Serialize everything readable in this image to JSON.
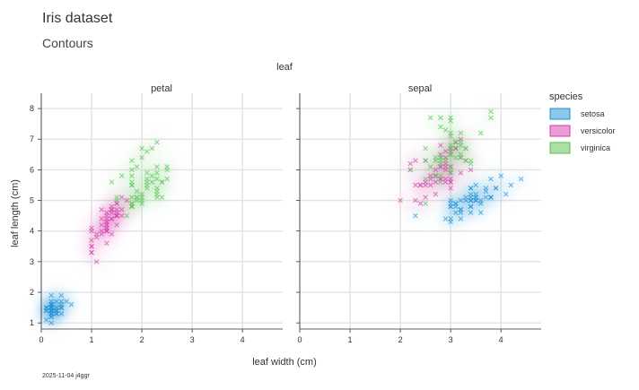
{
  "chart_data": {
    "type": "scatter",
    "title": "Iris dataset",
    "subtitle": "Contours",
    "facet_title": "leaf",
    "panels": [
      "petal",
      "sepal"
    ],
    "xlabel": "leaf width (cm)",
    "ylabel": "leaf length (cm)",
    "xlim": [
      0,
      4.8
    ],
    "ylim": [
      0.8,
      8.5
    ],
    "xticks": [
      0,
      1,
      2,
      3,
      4
    ],
    "yticks": [
      1,
      2,
      3,
      4,
      5,
      6,
      7,
      8
    ],
    "grid": true,
    "legend": {
      "title": "species",
      "placement": "right",
      "entries": [
        {
          "label": "setosa",
          "color": "#1b8fd6"
        },
        {
          "label": "versicolor",
          "color": "#d63dab"
        },
        {
          "label": "virginica",
          "color": "#55c24e"
        }
      ]
    },
    "caption": "2025-11-04 j4ggr",
    "series": [
      {
        "panel": "petal",
        "species": "setosa",
        "points": [
          [
            0.2,
            1.4
          ],
          [
            0.2,
            1.4
          ],
          [
            0.2,
            1.3
          ],
          [
            0.2,
            1.5
          ],
          [
            0.2,
            1.4
          ],
          [
            0.4,
            1.7
          ],
          [
            0.3,
            1.4
          ],
          [
            0.2,
            1.5
          ],
          [
            0.2,
            1.4
          ],
          [
            0.1,
            1.5
          ],
          [
            0.2,
            1.5
          ],
          [
            0.2,
            1.6
          ],
          [
            0.1,
            1.4
          ],
          [
            0.1,
            1.1
          ],
          [
            0.2,
            1.2
          ],
          [
            0.4,
            1.5
          ],
          [
            0.4,
            1.3
          ],
          [
            0.3,
            1.4
          ],
          [
            0.3,
            1.7
          ],
          [
            0.3,
            1.5
          ],
          [
            0.2,
            1.7
          ],
          [
            0.4,
            1.5
          ],
          [
            0.2,
            1.0
          ],
          [
            0.5,
            1.7
          ],
          [
            0.2,
            1.9
          ],
          [
            0.2,
            1.6
          ],
          [
            0.4,
            1.6
          ],
          [
            0.2,
            1.5
          ],
          [
            0.2,
            1.4
          ],
          [
            0.2,
            1.6
          ],
          [
            0.2,
            1.6
          ],
          [
            0.4,
            1.5
          ],
          [
            0.1,
            1.5
          ],
          [
            0.2,
            1.4
          ],
          [
            0.2,
            1.5
          ],
          [
            0.2,
            1.2
          ],
          [
            0.2,
            1.3
          ],
          [
            0.1,
            1.4
          ],
          [
            0.2,
            1.3
          ],
          [
            0.2,
            1.5
          ],
          [
            0.3,
            1.3
          ],
          [
            0.3,
            1.3
          ],
          [
            0.2,
            1.3
          ],
          [
            0.6,
            1.6
          ],
          [
            0.4,
            1.9
          ],
          [
            0.3,
            1.4
          ],
          [
            0.2,
            1.6
          ],
          [
            0.2,
            1.4
          ],
          [
            0.2,
            1.5
          ],
          [
            0.2,
            1.4
          ]
        ]
      },
      {
        "panel": "petal",
        "species": "versicolor",
        "points": [
          [
            1.4,
            4.7
          ],
          [
            1.5,
            4.5
          ],
          [
            1.5,
            4.9
          ],
          [
            1.3,
            4.0
          ],
          [
            1.5,
            4.6
          ],
          [
            1.3,
            4.5
          ],
          [
            1.6,
            4.7
          ],
          [
            1.0,
            3.3
          ],
          [
            1.3,
            4.6
          ],
          [
            1.4,
            3.9
          ],
          [
            1.0,
            3.5
          ],
          [
            1.5,
            4.2
          ],
          [
            1.0,
            4.0
          ],
          [
            1.4,
            4.7
          ],
          [
            1.3,
            3.6
          ],
          [
            1.4,
            4.4
          ],
          [
            1.5,
            4.5
          ],
          [
            1.0,
            4.1
          ],
          [
            1.5,
            4.5
          ],
          [
            1.1,
            3.9
          ],
          [
            1.8,
            4.8
          ],
          [
            1.3,
            4.0
          ],
          [
            1.5,
            4.9
          ],
          [
            1.2,
            4.7
          ],
          [
            1.3,
            4.3
          ],
          [
            1.4,
            4.4
          ],
          [
            1.4,
            4.8
          ],
          [
            1.7,
            5.0
          ],
          [
            1.5,
            4.5
          ],
          [
            1.0,
            3.5
          ],
          [
            1.1,
            3.8
          ],
          [
            1.0,
            3.7
          ],
          [
            1.2,
            3.9
          ],
          [
            1.6,
            5.1
          ],
          [
            1.5,
            4.5
          ],
          [
            1.6,
            4.5
          ],
          [
            1.5,
            4.7
          ],
          [
            1.3,
            4.4
          ],
          [
            1.3,
            4.1
          ],
          [
            1.3,
            4.0
          ],
          [
            1.2,
            4.4
          ],
          [
            1.4,
            4.6
          ],
          [
            1.2,
            4.0
          ],
          [
            1.0,
            3.3
          ],
          [
            1.3,
            4.2
          ],
          [
            1.2,
            4.2
          ],
          [
            1.3,
            4.2
          ],
          [
            1.3,
            4.3
          ],
          [
            1.1,
            3.0
          ],
          [
            1.3,
            4.1
          ]
        ]
      },
      {
        "panel": "petal",
        "species": "virginica",
        "points": [
          [
            2.5,
            6.0
          ],
          [
            1.9,
            5.1
          ],
          [
            2.1,
            5.9
          ],
          [
            1.8,
            5.6
          ],
          [
            2.2,
            5.8
          ],
          [
            2.1,
            6.6
          ],
          [
            1.7,
            4.5
          ],
          [
            1.8,
            6.3
          ],
          [
            1.8,
            5.8
          ],
          [
            2.5,
            6.1
          ],
          [
            2.0,
            5.1
          ],
          [
            1.9,
            5.3
          ],
          [
            2.1,
            5.5
          ],
          [
            2.0,
            5.0
          ],
          [
            2.4,
            5.1
          ],
          [
            2.3,
            5.3
          ],
          [
            1.8,
            5.5
          ],
          [
            2.2,
            6.7
          ],
          [
            2.3,
            6.9
          ],
          [
            1.5,
            5.0
          ],
          [
            2.3,
            5.7
          ],
          [
            2.0,
            4.9
          ],
          [
            2.0,
            6.7
          ],
          [
            1.8,
            4.9
          ],
          [
            2.1,
            5.7
          ],
          [
            1.8,
            6.0
          ],
          [
            1.8,
            4.8
          ],
          [
            1.8,
            4.9
          ],
          [
            2.1,
            5.6
          ],
          [
            1.6,
            5.8
          ],
          [
            1.9,
            6.1
          ],
          [
            2.0,
            6.4
          ],
          [
            2.2,
            5.6
          ],
          [
            1.5,
            5.1
          ],
          [
            1.4,
            5.6
          ],
          [
            2.3,
            6.1
          ],
          [
            2.4,
            5.6
          ],
          [
            1.8,
            5.5
          ],
          [
            1.8,
            4.8
          ],
          [
            2.1,
            5.4
          ],
          [
            2.4,
            5.6
          ],
          [
            2.3,
            5.1
          ],
          [
            1.9,
            5.1
          ],
          [
            2.3,
            5.9
          ],
          [
            2.5,
            5.7
          ],
          [
            2.3,
            5.2
          ],
          [
            1.9,
            5.0
          ],
          [
            2.0,
            5.2
          ],
          [
            2.3,
            5.4
          ],
          [
            1.8,
            5.1
          ]
        ]
      },
      {
        "panel": "sepal",
        "species": "setosa",
        "points": [
          [
            3.5,
            5.1
          ],
          [
            3.0,
            4.9
          ],
          [
            3.2,
            4.7
          ],
          [
            3.1,
            4.6
          ],
          [
            3.6,
            5.0
          ],
          [
            3.9,
            5.4
          ],
          [
            3.4,
            4.6
          ],
          [
            3.4,
            5.0
          ],
          [
            2.9,
            4.4
          ],
          [
            3.1,
            4.9
          ],
          [
            3.7,
            5.4
          ],
          [
            3.4,
            4.8
          ],
          [
            3.0,
            4.8
          ],
          [
            3.0,
            4.3
          ],
          [
            4.0,
            5.8
          ],
          [
            4.4,
            5.7
          ],
          [
            3.9,
            5.4
          ],
          [
            3.5,
            5.1
          ],
          [
            3.8,
            5.7
          ],
          [
            3.8,
            5.1
          ],
          [
            3.4,
            5.4
          ],
          [
            3.7,
            5.1
          ],
          [
            3.6,
            4.6
          ],
          [
            3.3,
            5.1
          ],
          [
            3.4,
            4.8
          ],
          [
            3.0,
            5.0
          ],
          [
            3.4,
            5.0
          ],
          [
            3.5,
            5.2
          ],
          [
            3.4,
            5.2
          ],
          [
            3.2,
            4.7
          ],
          [
            3.1,
            4.8
          ],
          [
            3.4,
            5.4
          ],
          [
            4.1,
            5.2
          ],
          [
            4.2,
            5.5
          ],
          [
            3.1,
            4.9
          ],
          [
            3.2,
            5.0
          ],
          [
            3.5,
            5.5
          ],
          [
            3.6,
            4.9
          ],
          [
            3.0,
            4.4
          ],
          [
            3.4,
            5.1
          ],
          [
            3.5,
            5.0
          ],
          [
            2.3,
            4.5
          ],
          [
            3.2,
            4.4
          ],
          [
            3.5,
            5.0
          ],
          [
            3.8,
            5.1
          ],
          [
            3.0,
            4.8
          ],
          [
            3.8,
            5.1
          ],
          [
            3.2,
            4.6
          ],
          [
            3.7,
            5.3
          ],
          [
            3.3,
            5.0
          ]
        ]
      },
      {
        "panel": "sepal",
        "species": "versicolor",
        "points": [
          [
            3.2,
            7.0
          ],
          [
            3.2,
            6.4
          ],
          [
            3.1,
            6.9
          ],
          [
            2.3,
            5.5
          ],
          [
            2.8,
            6.5
          ],
          [
            2.8,
            5.7
          ],
          [
            3.3,
            6.3
          ],
          [
            2.4,
            4.9
          ],
          [
            2.9,
            6.6
          ],
          [
            2.7,
            5.2
          ],
          [
            2.0,
            5.0
          ],
          [
            3.0,
            5.9
          ],
          [
            2.2,
            6.0
          ],
          [
            2.9,
            6.1
          ],
          [
            2.9,
            5.6
          ],
          [
            3.1,
            6.7
          ],
          [
            3.0,
            5.6
          ],
          [
            2.7,
            5.8
          ],
          [
            2.2,
            6.2
          ],
          [
            2.5,
            5.6
          ],
          [
            3.2,
            5.9
          ],
          [
            2.8,
            6.1
          ],
          [
            2.5,
            6.3
          ],
          [
            2.8,
            6.1
          ],
          [
            2.9,
            6.4
          ],
          [
            3.0,
            6.6
          ],
          [
            2.8,
            6.8
          ],
          [
            3.0,
            6.7
          ],
          [
            2.9,
            6.0
          ],
          [
            2.6,
            5.7
          ],
          [
            2.4,
            5.5
          ],
          [
            2.4,
            5.5
          ],
          [
            2.7,
            5.8
          ],
          [
            2.7,
            6.0
          ],
          [
            3.0,
            5.4
          ],
          [
            3.4,
            6.0
          ],
          [
            3.1,
            6.7
          ],
          [
            2.3,
            6.3
          ],
          [
            3.0,
            5.6
          ],
          [
            2.5,
            5.5
          ],
          [
            2.6,
            5.5
          ],
          [
            3.0,
            6.1
          ],
          [
            2.6,
            5.8
          ],
          [
            2.3,
            5.0
          ],
          [
            2.7,
            5.6
          ],
          [
            3.0,
            5.7
          ],
          [
            2.9,
            5.7
          ],
          [
            2.9,
            6.2
          ],
          [
            2.5,
            5.1
          ],
          [
            2.8,
            5.7
          ]
        ]
      },
      {
        "panel": "sepal",
        "species": "virginica",
        "points": [
          [
            3.3,
            6.3
          ],
          [
            2.7,
            5.8
          ],
          [
            3.0,
            7.1
          ],
          [
            2.9,
            6.3
          ],
          [
            3.0,
            6.5
          ],
          [
            3.0,
            7.6
          ],
          [
            2.5,
            4.9
          ],
          [
            2.9,
            7.3
          ],
          [
            2.5,
            6.7
          ],
          [
            3.6,
            7.2
          ],
          [
            3.2,
            6.5
          ],
          [
            2.7,
            6.4
          ],
          [
            3.0,
            6.8
          ],
          [
            2.5,
            5.7
          ],
          [
            2.8,
            5.8
          ],
          [
            3.2,
            6.4
          ],
          [
            3.0,
            6.5
          ],
          [
            3.8,
            7.7
          ],
          [
            2.6,
            7.7
          ],
          [
            2.2,
            6.0
          ],
          [
            3.2,
            6.9
          ],
          [
            2.8,
            5.6
          ],
          [
            2.8,
            7.7
          ],
          [
            2.7,
            6.3
          ],
          [
            3.3,
            6.7
          ],
          [
            3.2,
            7.2
          ],
          [
            2.8,
            6.2
          ],
          [
            3.0,
            6.1
          ],
          [
            2.8,
            6.4
          ],
          [
            3.0,
            7.2
          ],
          [
            2.8,
            7.4
          ],
          [
            3.8,
            7.9
          ],
          [
            2.8,
            6.4
          ],
          [
            2.8,
            6.3
          ],
          [
            2.6,
            6.1
          ],
          [
            3.0,
            7.7
          ],
          [
            3.4,
            6.3
          ],
          [
            3.1,
            6.4
          ],
          [
            3.0,
            6.0
          ],
          [
            3.1,
            6.9
          ],
          [
            3.1,
            6.7
          ],
          [
            3.1,
            6.9
          ],
          [
            2.7,
            5.8
          ],
          [
            3.2,
            6.8
          ],
          [
            3.3,
            6.7
          ],
          [
            3.0,
            6.7
          ],
          [
            2.5,
            6.3
          ],
          [
            3.0,
            6.5
          ],
          [
            3.4,
            6.2
          ],
          [
            3.0,
            5.9
          ]
        ]
      }
    ]
  }
}
